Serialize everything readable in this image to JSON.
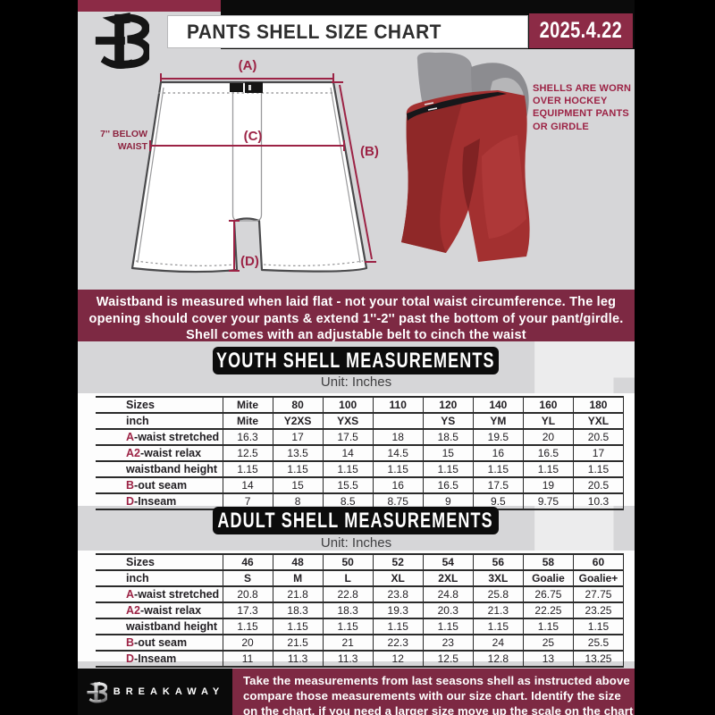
{
  "header": {
    "title": "PANTS SHELL SIZE CHART",
    "date": "2025.4.22"
  },
  "diagram": {
    "label_a": "(A)",
    "label_b": "(B)",
    "label_c": "(C)",
    "label_d": "(D)",
    "note_line1": "7'' BELOW",
    "note_line2": "WAIST"
  },
  "photo": {
    "caption_lines": [
      "SHELLS ARE WORN",
      "OVER HOCKEY",
      "EQUIPMENT PANTS",
      "OR GIRDLE"
    ]
  },
  "info_banner": {
    "lines": [
      "Waistband is measured when laid flat - not your total waist circumference. The leg",
      "opening should cover your pants & extend 1''-2'' past the bottom of your pant/girdle.",
      "Shell comes with an adjustable belt to cinch the waist"
    ]
  },
  "youth": {
    "banner": "YOUTH SHELL MEASUREMENTS",
    "unit": "Unit: Inches",
    "table": {
      "rows": [
        {
          "prefix": "",
          "label": "Sizes",
          "values": [
            "Mite",
            "80",
            "100",
            "110",
            "120",
            "140",
            "160",
            "180"
          ]
        },
        {
          "prefix": "",
          "label": "inch",
          "values": [
            "Mite",
            "Y2XS",
            "YXS",
            "",
            "YS",
            "YM",
            "YL",
            "YXL"
          ]
        },
        {
          "prefix": "A",
          "label": "-waist stretched",
          "values": [
            "16.3",
            "17",
            "17.5",
            "18",
            "18.5",
            "19.5",
            "20",
            "20.5"
          ]
        },
        {
          "prefix": "A2",
          "label": "-waist relax",
          "values": [
            "12.5",
            "13.5",
            "14",
            "14.5",
            "15",
            "16",
            "16.5",
            "17"
          ]
        },
        {
          "prefix": "",
          "label": "waistband height",
          "values": [
            "1.15",
            "1.15",
            "1.15",
            "1.15",
            "1.15",
            "1.15",
            "1.15",
            "1.15"
          ]
        },
        {
          "prefix": "B",
          "label": "-out seam",
          "values": [
            "14",
            "15",
            "15.5",
            "16",
            "16.5",
            "17.5",
            "19",
            "20.5"
          ]
        },
        {
          "prefix": "D",
          "label": "-Inseam",
          "values": [
            "7",
            "8",
            "8.5",
            "8.75",
            "9",
            "9.5",
            "9.75",
            "10.3"
          ]
        }
      ]
    }
  },
  "adult": {
    "banner": "ADULT SHELL MEASUREMENTS",
    "unit": "Unit: Inches",
    "table": {
      "rows": [
        {
          "prefix": "",
          "label": "Sizes",
          "values": [
            "46",
            "48",
            "50",
            "52",
            "54",
            "56",
            "58",
            "60"
          ]
        },
        {
          "prefix": "",
          "label": "inch",
          "values": [
            "S",
            "M",
            "L",
            "XL",
            "2XL",
            "3XL",
            "Goalie",
            "Goalie+"
          ]
        },
        {
          "prefix": "A",
          "label": "-waist stretched",
          "values": [
            "20.8",
            "21.8",
            "22.8",
            "23.8",
            "24.8",
            "25.8",
            "26.75",
            "27.75"
          ]
        },
        {
          "prefix": "A2",
          "label": "-waist relax",
          "values": [
            "17.3",
            "18.3",
            "18.3",
            "19.3",
            "20.3",
            "21.3",
            "22.25",
            "23.25"
          ]
        },
        {
          "prefix": "",
          "label": "waistband height",
          "values": [
            "1.15",
            "1.15",
            "1.15",
            "1.15",
            "1.15",
            "1.15",
            "1.15",
            "1.15"
          ]
        },
        {
          "prefix": "B",
          "label": "-out seam",
          "values": [
            "20",
            "21.5",
            "21",
            "22.3",
            "23",
            "24",
            "25",
            "25.5"
          ]
        },
        {
          "prefix": "D",
          "label": "-Inseam",
          "values": [
            "11",
            "11.3",
            "11.3",
            "12",
            "12.5",
            "12.8",
            "13",
            "13.25"
          ]
        }
      ]
    }
  },
  "footer": {
    "brand": "BREAKAWAY",
    "lines": [
      "Take the measurements from last seasons shell as instructed above",
      "compare those measurements  with our size chart. Identify the size",
      "on the chart, if you need a larger size move up the scale on the chart"
    ]
  },
  "watermark": {
    "letter": "B"
  },
  "colors": {
    "maroon": "#7d2943",
    "maroon_bright": "#8c2b46",
    "accent": "#9c2345",
    "black": "#0b0b0b",
    "bg": "#d6d6d8"
  }
}
